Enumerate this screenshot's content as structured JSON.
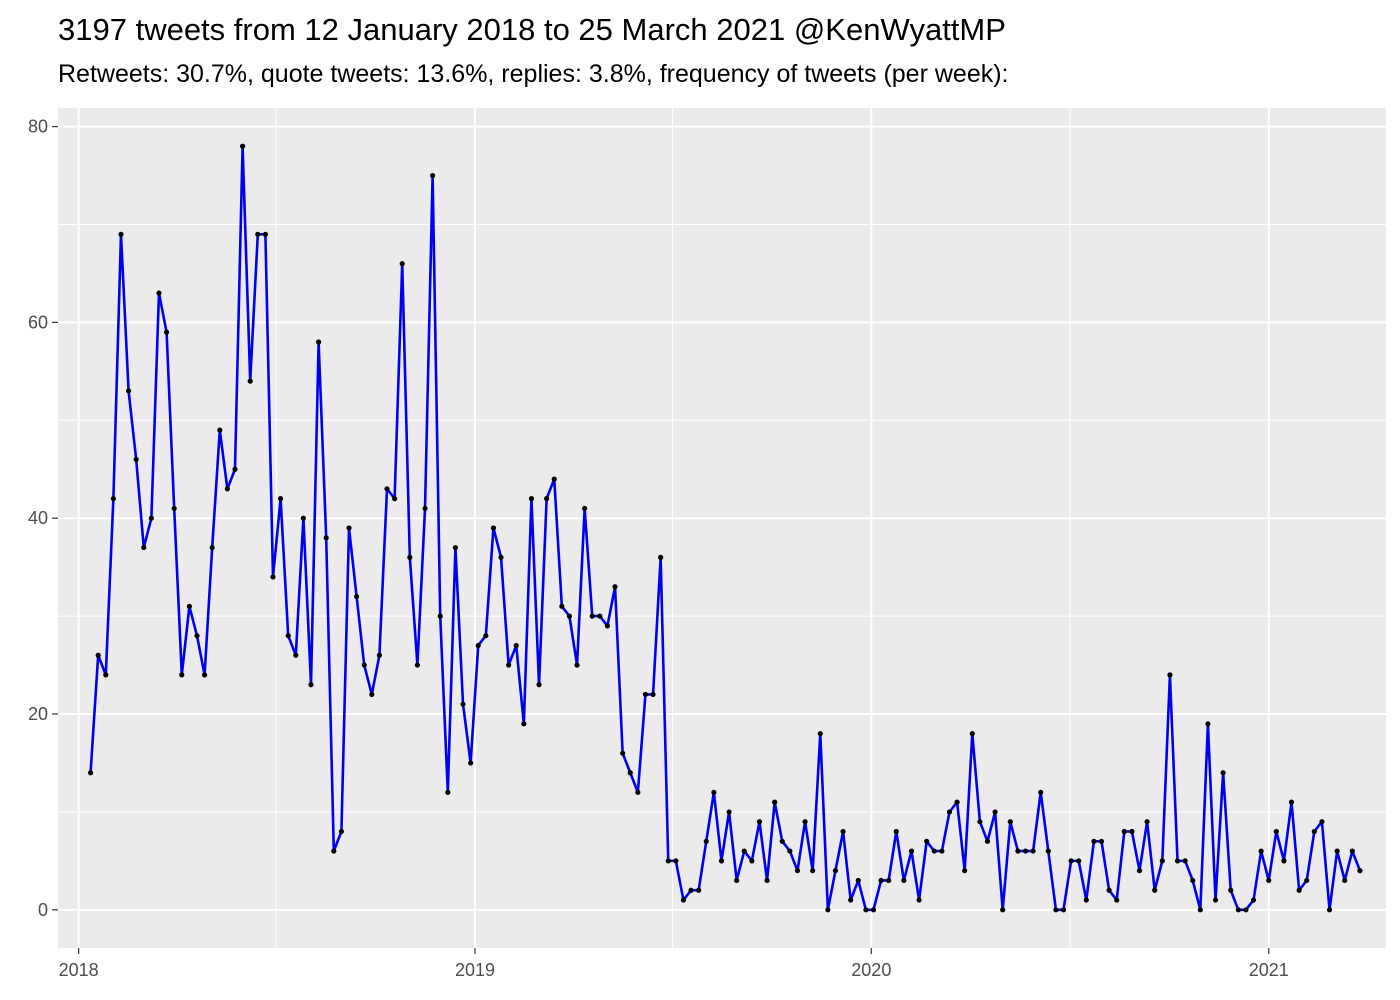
{
  "title": "3197 tweets from 12 January 2018 to 25 March 2021 @KenWyattMP",
  "subtitle": "Retweets: 30.7%, quote tweets: 13.6%, replies: 3.8%, frequency of tweets (per week):",
  "chart_data": {
    "type": "line",
    "title": "3197 tweets from 12 January 2018 to 25 March 2021 @KenWyattMP",
    "subtitle": "Retweets: 30.7%, quote tweets: 13.6%, replies: 3.8%, frequency of tweets (per week):",
    "xlabel": "",
    "ylabel": "",
    "x_start": "2018-01-12",
    "x_interval": "1 week",
    "xlim": [
      "2017-12-13",
      "2021-04-19"
    ],
    "ylim": [
      -3.9,
      81.9
    ],
    "x_ticks": [
      "2018",
      "2019",
      "2020",
      "2021"
    ],
    "y_ticks": [
      0,
      20,
      40,
      60,
      80
    ],
    "grid": true,
    "line_color": "#0000ee",
    "point_color": "#000000",
    "panel_background": "#ebebeb",
    "series": [
      {
        "values": [
          14,
          26,
          24,
          42,
          69,
          53,
          46,
          37,
          40,
          63,
          59,
          41,
          24,
          31,
          28,
          24,
          37,
          49,
          43,
          45,
          78,
          54,
          69,
          69,
          34,
          42,
          28,
          26,
          40,
          23,
          58,
          38,
          6,
          8,
          39,
          32,
          25,
          22,
          26,
          43,
          42,
          66,
          36,
          25,
          41,
          75,
          30,
          12,
          37,
          21,
          15,
          27,
          28,
          39,
          36,
          25,
          27,
          19,
          42,
          23,
          42,
          44,
          31,
          30,
          25,
          41,
          30,
          30,
          29,
          33,
          16,
          14,
          12,
          22,
          22,
          36,
          5,
          5,
          1,
          2,
          2,
          7,
          12,
          5,
          10,
          3,
          6,
          5,
          9,
          3,
          11,
          7,
          6,
          4,
          9,
          4,
          18,
          0,
          4,
          8,
          1,
          3,
          0,
          0,
          3,
          3,
          8,
          3,
          6,
          1,
          7,
          6,
          6,
          10,
          11,
          4,
          18,
          9,
          7,
          10,
          0,
          9,
          6,
          6,
          6,
          12,
          6,
          0,
          0,
          5,
          5,
          1,
          7,
          7,
          2,
          1,
          8,
          8,
          4,
          9,
          2,
          5,
          24,
          5,
          5,
          3,
          0,
          19,
          1,
          14,
          2,
          0,
          0,
          1,
          6,
          3,
          8,
          5,
          11,
          2,
          3,
          8,
          9,
          0,
          6,
          3,
          6,
          4
        ]
      }
    ]
  }
}
